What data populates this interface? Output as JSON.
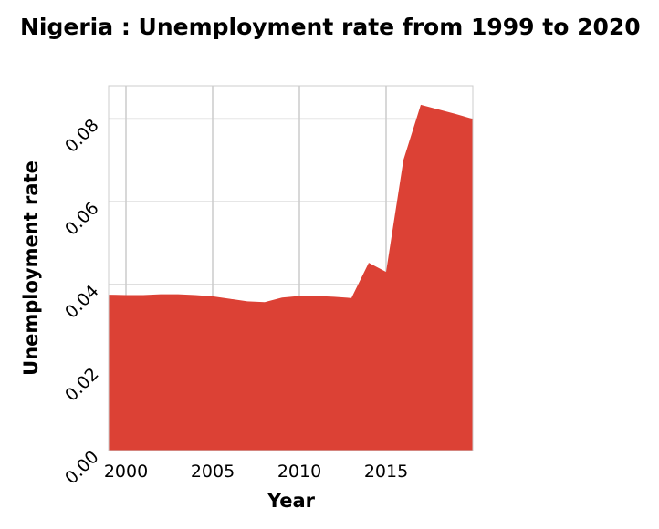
{
  "chart_data": {
    "type": "area",
    "title": "Nigeria : Unemployment rate from 1999 to 2020",
    "xlabel": "Year",
    "ylabel": "Unemployment rate",
    "xlim": [
      1999,
      2020
    ],
    "ylim": [
      0,
      0.088
    ],
    "x_ticks": [
      2000,
      2005,
      2010,
      2015
    ],
    "x_tick_labels": [
      "2000",
      "2005",
      "2010",
      "2015"
    ],
    "y_ticks": [
      0,
      0.02,
      0.04,
      0.06,
      0.08
    ],
    "y_tick_labels": [
      "0.00",
      "0.02",
      "0.04",
      "0.06",
      "0.08"
    ],
    "grid": true,
    "fill_color": "#dc4135",
    "grid_color": "#cccccc",
    "x": [
      1999,
      2000,
      2001,
      2002,
      2003,
      2004,
      2005,
      2006,
      2007,
      2008,
      2009,
      2010,
      2011,
      2012,
      2013,
      2014,
      2015,
      2016,
      2017,
      2018,
      2019,
      2020
    ],
    "series": [
      {
        "values": [
          0.0376,
          0.0375,
          0.0375,
          0.0377,
          0.0377,
          0.0375,
          0.0372,
          0.0366,
          0.036,
          0.0358,
          0.0369,
          0.0373,
          0.0373,
          0.0371,
          0.0368,
          0.0453,
          0.0431,
          0.0701,
          0.0834,
          0.0823,
          0.0812,
          0.08
        ]
      }
    ]
  }
}
